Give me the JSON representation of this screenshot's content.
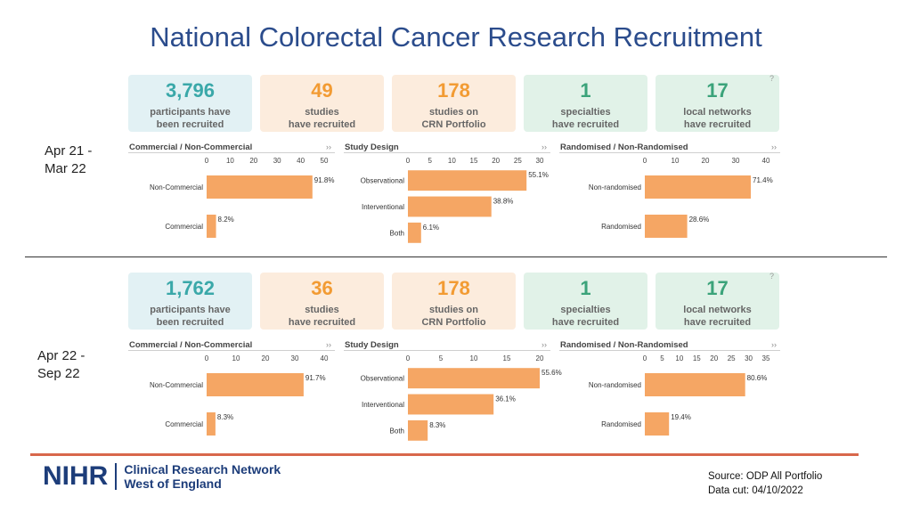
{
  "title": "National Colorectal Cancer Research Recruitment",
  "colors": {
    "bar": "#f5a664",
    "title": "#2b4c8c",
    "accent": "#d8674b"
  },
  "periods": [
    {
      "label_line1": "Apr 21 -",
      "label_line2": "Mar 22",
      "kpis": [
        {
          "value": "3,796",
          "line1": "participants have",
          "line2": "been recruited",
          "color": "#3aa8a9",
          "bg": "#e2f1f4"
        },
        {
          "value": "49",
          "line1": "studies",
          "line2": "have recruited",
          "color": "#f29b33",
          "bg": "#fcecdd"
        },
        {
          "value": "178",
          "line1": "studies on",
          "line2": "CRN Portfolio",
          "color": "#f29b33",
          "bg": "#fcecdd"
        },
        {
          "value": "1",
          "line1": "specialties",
          "line2": "have recruited",
          "color": "#3ba37a",
          "bg": "#e1f2e8"
        },
        {
          "value": "17",
          "line1": "local networks",
          "line2": "have recruited",
          "color": "#3ba37a",
          "bg": "#e1f2e8"
        }
      ]
    },
    {
      "label_line1": "Apr 22 -",
      "label_line2": "Sep 22",
      "kpis": [
        {
          "value": "1,762",
          "line1": "participants have",
          "line2": "been recruited",
          "color": "#3aa8a9",
          "bg": "#e2f1f4"
        },
        {
          "value": "36",
          "line1": "studies",
          "line2": "have recruited",
          "color": "#f29b33",
          "bg": "#fcecdd"
        },
        {
          "value": "178",
          "line1": "studies on",
          "line2": "CRN Portfolio",
          "color": "#f29b33",
          "bg": "#fcecdd"
        },
        {
          "value": "1",
          "line1": "specialties",
          "line2": "have recruited",
          "color": "#3ba37a",
          "bg": "#e1f2e8"
        },
        {
          "value": "17",
          "line1": "local networks",
          "line2": "have recruited",
          "color": "#3ba37a",
          "bg": "#e1f2e8"
        }
      ]
    }
  ],
  "help_symbol": "?",
  "expand_symbol": "››",
  "chart_data": [
    {
      "type": "bar",
      "orientation": "horizontal",
      "period": "Apr 21 - Mar 22",
      "title": "Commercial / Non-Commercial",
      "categories": [
        "Non-Commercial",
        "Commercial"
      ],
      "values": [
        45,
        4
      ],
      "labels": [
        "91.8%",
        "8.2%"
      ],
      "ticks": [
        0,
        10,
        20,
        30,
        40,
        50
      ],
      "xlim": [
        0,
        50
      ]
    },
    {
      "type": "bar",
      "orientation": "horizontal",
      "period": "Apr 21 - Mar 22",
      "title": "Study Design",
      "categories": [
        "Observational",
        "Interventional",
        "Both"
      ],
      "values": [
        27,
        19,
        3
      ],
      "labels": [
        "55.1%",
        "38.8%",
        "6.1%"
      ],
      "ticks": [
        0,
        5,
        10,
        15,
        20,
        25,
        30
      ],
      "xlim": [
        0,
        30
      ]
    },
    {
      "type": "bar",
      "orientation": "horizontal",
      "period": "Apr 21 - Mar 22",
      "title": "Randomised / Non-Randomised",
      "categories": [
        "Non-randomised",
        "Randomised"
      ],
      "values": [
        35,
        14
      ],
      "labels": [
        "71.4%",
        "28.6%"
      ],
      "ticks": [
        0,
        10,
        20,
        30,
        40
      ],
      "xlim": [
        0,
        40
      ]
    },
    {
      "type": "bar",
      "orientation": "horizontal",
      "period": "Apr 22 - Sep 22",
      "title": "Commercial / Non-Commercial",
      "categories": [
        "Non-Commercial",
        "Commercial"
      ],
      "values": [
        33,
        3
      ],
      "labels": [
        "91.7%",
        "8.3%"
      ],
      "ticks": [
        0,
        10,
        20,
        30,
        40
      ],
      "xlim": [
        0,
        40
      ]
    },
    {
      "type": "bar",
      "orientation": "horizontal",
      "period": "Apr 22 - Sep 22",
      "title": "Study Design",
      "categories": [
        "Observational",
        "Interventional",
        "Both"
      ],
      "values": [
        20,
        13,
        3
      ],
      "labels": [
        "55.6%",
        "36.1%",
        "8.3%"
      ],
      "ticks": [
        0,
        5,
        10,
        15,
        20
      ],
      "xlim": [
        0,
        20
      ]
    },
    {
      "type": "bar",
      "orientation": "horizontal",
      "period": "Apr 22 - Sep 22",
      "title": "Randomised / Non-Randomised",
      "categories": [
        "Non-randomised",
        "Randomised"
      ],
      "values": [
        29,
        7
      ],
      "labels": [
        "80.6%",
        "19.4%"
      ],
      "ticks": [
        0,
        5,
        10,
        15,
        20,
        25,
        30,
        35
      ],
      "xlim": [
        0,
        35
      ]
    }
  ],
  "footer": {
    "logo_text": "NIHR",
    "network_line1": "Clinical Research Network",
    "network_line2": "West of England",
    "source_line1": "Source: ODP All Portfolio",
    "source_line2": "Data cut: 04/10/2022"
  }
}
